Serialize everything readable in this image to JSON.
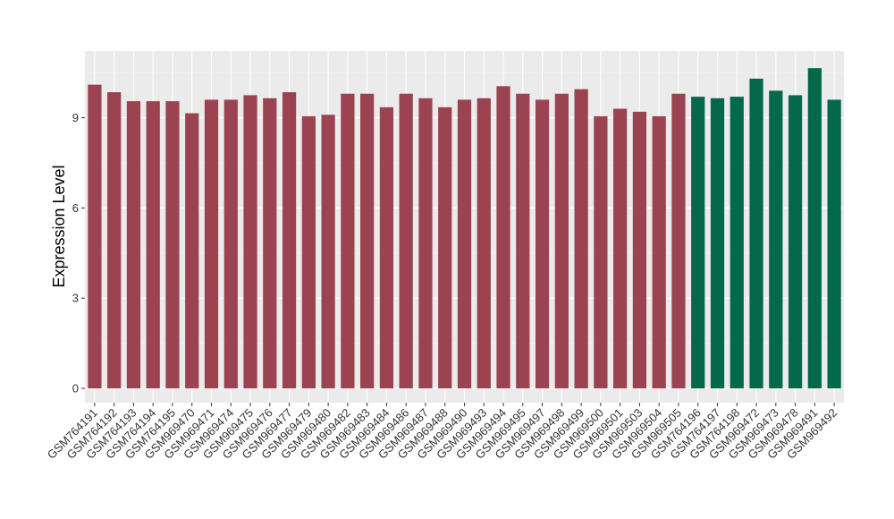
{
  "chart_data": {
    "type": "bar",
    "ylabel": "Expression Level",
    "xlabel": "",
    "ylim": [
      -0.5,
      11.0
    ],
    "yticks": [
      0,
      3,
      6,
      9
    ],
    "grid": true,
    "background": "#ebebeb",
    "group_colors": {
      "group_a": "#9b4350",
      "group_b": "#03694a"
    },
    "categories": [
      "GSM764191",
      "GSM764192",
      "GSM764193",
      "GSM764194",
      "GSM764195",
      "GSM969470",
      "GSM969471",
      "GSM969474",
      "GSM969475",
      "GSM969476",
      "GSM969477",
      "GSM969479",
      "GSM969480",
      "GSM969482",
      "GSM969483",
      "GSM969484",
      "GSM969486",
      "GSM969487",
      "GSM969488",
      "GSM969490",
      "GSM969493",
      "GSM969494",
      "GSM969495",
      "GSM969497",
      "GSM969498",
      "GSM969499",
      "GSM969500",
      "GSM969501",
      "GSM969503",
      "GSM969504",
      "GSM969505",
      "GSM764196",
      "GSM764197",
      "GSM764198",
      "GSM969472",
      "GSM969473",
      "GSM969478",
      "GSM969491",
      "GSM969492"
    ],
    "values": [
      10.1,
      9.85,
      9.55,
      9.55,
      9.55,
      9.15,
      9.6,
      9.6,
      9.75,
      9.65,
      9.85,
      9.05,
      9.1,
      9.8,
      9.8,
      9.35,
      9.8,
      9.65,
      9.35,
      9.6,
      9.65,
      10.05,
      9.8,
      9.6,
      9.8,
      9.95,
      9.05,
      9.3,
      9.2,
      9.05,
      9.8,
      9.7,
      9.65,
      9.7,
      10.3,
      9.9,
      9.75,
      10.65,
      9.6
    ],
    "groups": [
      "group_a",
      "group_a",
      "group_a",
      "group_a",
      "group_a",
      "group_a",
      "group_a",
      "group_a",
      "group_a",
      "group_a",
      "group_a",
      "group_a",
      "group_a",
      "group_a",
      "group_a",
      "group_a",
      "group_a",
      "group_a",
      "group_a",
      "group_a",
      "group_a",
      "group_a",
      "group_a",
      "group_a",
      "group_a",
      "group_a",
      "group_a",
      "group_a",
      "group_a",
      "group_a",
      "group_a",
      "group_b",
      "group_b",
      "group_b",
      "group_b",
      "group_b",
      "group_b",
      "group_b",
      "group_b"
    ]
  }
}
